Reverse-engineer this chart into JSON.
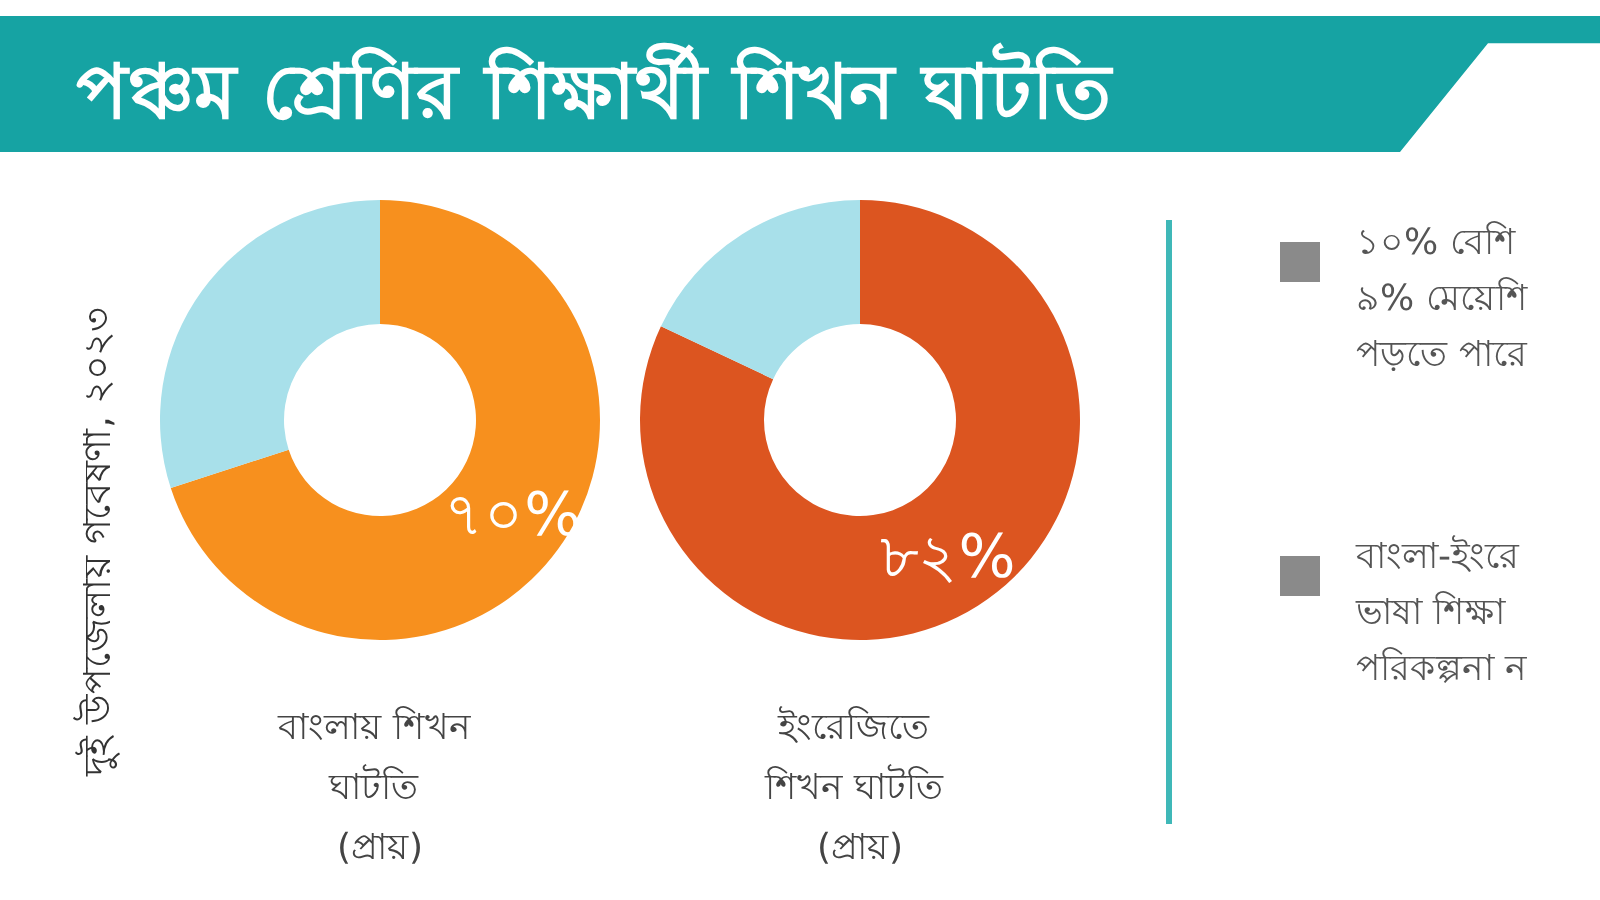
{
  "chart_data": [
    {
      "type": "other",
      "title": "পঞ্চম শ্রেণির শিক্ষার্থী শিখন ঘাটতি",
      "annotations": [
        "দুই উপজেলায় গবেষণা, ২০২৩"
      ]
    },
    {
      "type": "donut",
      "title": "বাংলায় শিখন ঘাটতি (প্রায়)",
      "categories": [
        null,
        null
      ],
      "values": [
        70,
        30
      ],
      "colors": [
        "#f7901e",
        "#a8e0ea"
      ],
      "value_labels": [
        "৭০%",
        null
      ]
    },
    {
      "type": "donut",
      "title": "ইংরেজিতে শিখন ঘাটতি (প্রায়)",
      "categories": [
        null,
        null
      ],
      "values": [
        82,
        18
      ],
      "colors": [
        "#dc5520",
        "#a8e0ea"
      ],
      "value_labels": [
        "৮২%",
        null
      ]
    },
    {
      "type": "other",
      "annotations": [
        "১০% বেশি\n৯% মেয়েশি\nপড়তে পারে",
        "বাংলা-ইংরে\nভাষা শিক্ষা\nপরিকল্পনা ন"
      ]
    }
  ]
}
